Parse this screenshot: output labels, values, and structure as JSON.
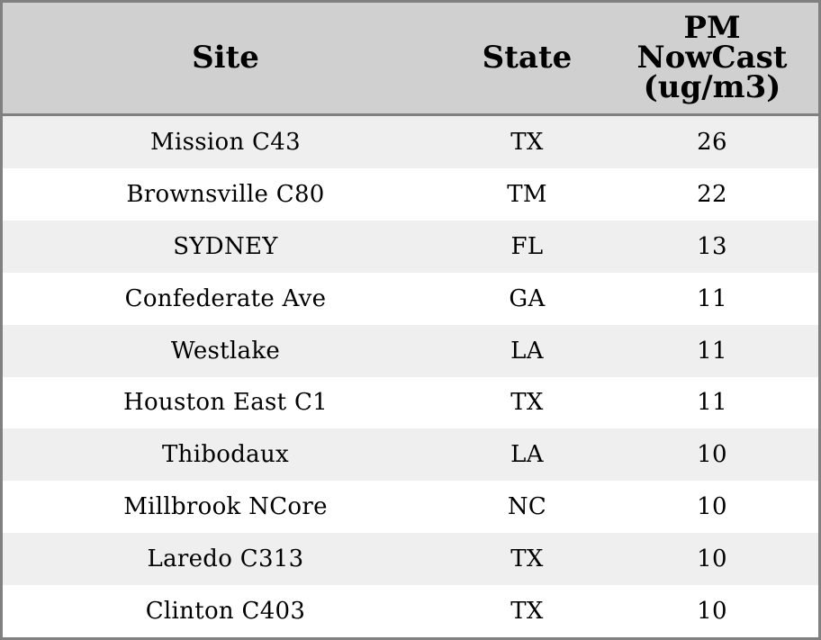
{
  "chart_data": {
    "type": "table",
    "columns": [
      "Site",
      "State",
      "PM NowCast (ug/m3)"
    ],
    "rows": [
      {
        "site": "Mission C43",
        "state": "TX",
        "value": 26
      },
      {
        "site": "Brownsville C80",
        "state": "TM",
        "value": 22
      },
      {
        "site": "SYDNEY",
        "state": "FL",
        "value": 13
      },
      {
        "site": "Confederate Ave",
        "state": "GA",
        "value": 11
      },
      {
        "site": "Westlake",
        "state": "LA",
        "value": 11
      },
      {
        "site": "Houston East C1",
        "state": "TX",
        "value": 11
      },
      {
        "site": "Thibodaux",
        "state": "LA",
        "value": 10
      },
      {
        "site": "Millbrook NCore",
        "state": "NC",
        "value": 10
      },
      {
        "site": "Laredo C313",
        "state": "TX",
        "value": 10
      },
      {
        "site": "Clinton C403",
        "state": "TX",
        "value": 10
      }
    ]
  },
  "colors": {
    "header_bg": "#d0d0d0",
    "row_shaded": "#efefef",
    "row_plain": "#ffffff",
    "border": "#808080"
  }
}
